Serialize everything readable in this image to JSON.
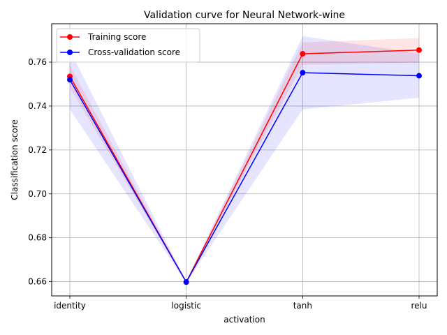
{
  "chart_data": {
    "type": "line",
    "title": "Validation curve for Neural Network-wine",
    "xlabel": "activation",
    "ylabel": "Classification score",
    "categories": [
      "identity",
      "logistic",
      "tanh",
      "relu"
    ],
    "ylim": [
      0.6535,
      0.7775
    ],
    "yticks": [
      0.66,
      0.68,
      0.7,
      0.72,
      0.74,
      0.76
    ],
    "ytick_labels": [
      "0.66",
      "0.68",
      "0.70",
      "0.72",
      "0.74",
      "0.76"
    ],
    "grid": true,
    "legend_position": "top-left",
    "series": [
      {
        "name": "Training score",
        "color": "#ff0000",
        "marker": "circle",
        "values": [
          0.7535,
          0.6598,
          0.7638,
          0.7655
        ],
        "band_lower": [
          0.7485,
          0.6595,
          0.7588,
          0.7598
        ],
        "band_upper": [
          0.7585,
          0.6601,
          0.769,
          0.771
        ]
      },
      {
        "name": "Cross-validation score",
        "color": "#0000ff",
        "marker": "circle",
        "values": [
          0.752,
          0.6598,
          0.7552,
          0.7538
        ],
        "band_lower": [
          0.7385,
          0.6595,
          0.7385,
          0.7438
        ],
        "band_upper": [
          0.7655,
          0.6601,
          0.7718,
          0.764
        ]
      }
    ]
  }
}
